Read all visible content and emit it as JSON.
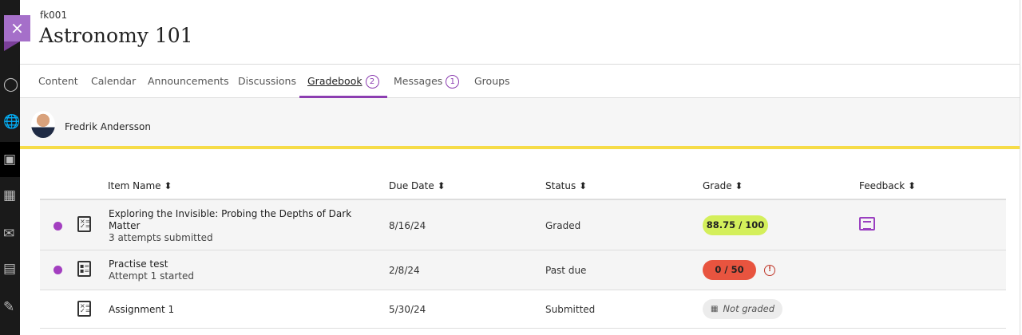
{
  "course": {
    "code": "fk001",
    "title": "Astronomy 101"
  },
  "close_label": "×",
  "tabs": [
    {
      "label": "Content"
    },
    {
      "label": "Calendar"
    },
    {
      "label": "Announcements"
    },
    {
      "label": "Discussions"
    },
    {
      "label": "Gradebook",
      "badge": "2",
      "selected": true
    },
    {
      "label": "Messages",
      "badge": "1"
    },
    {
      "label": "Groups"
    }
  ],
  "student": {
    "name": "Fredrik Andersson"
  },
  "columns": [
    "Item Name",
    "Due Date",
    "Status",
    "Grade",
    "Feedback"
  ],
  "sort_icon": "⬍",
  "rows": [
    {
      "name": "Exploring the Invisible: Probing the Depths of Dark",
      "name2": "Matter",
      "sub": "3 attempts submitted",
      "due": "8/16/24",
      "status": "Graded",
      "grade": "88.75 / 100",
      "grade_color": "#d4ef5b",
      "unread": true,
      "feedback": true
    },
    {
      "name": "Practise test",
      "sub": "Attempt 1 started",
      "due": "2/8/24",
      "status": "Past due",
      "grade": "0 / 50",
      "grade_color": "#e8543f",
      "unread": true,
      "warning": "!"
    },
    {
      "name": "Assignment 1",
      "due": "5/30/24",
      "status": "Submitted",
      "grade": "Not graded",
      "grade_color": "#ececec"
    }
  ],
  "colors": {
    "accent": "#8c3eb1",
    "highlight": "#f6dc48"
  }
}
